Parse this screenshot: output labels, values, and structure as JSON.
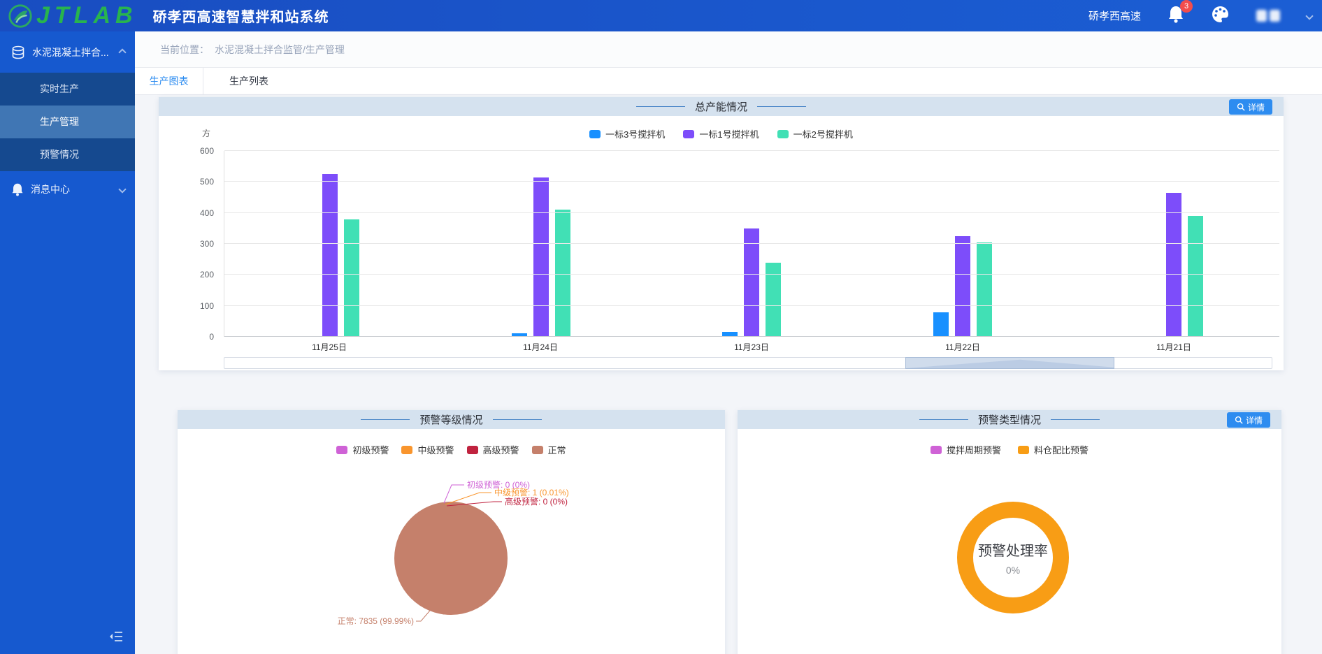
{
  "header": {
    "logo_text": "JTLAB",
    "app_title": "硚孝西高速智慧拌和站系统",
    "org_name": "硚孝西高速",
    "notification_count": "3"
  },
  "sidebar": {
    "group_label": "水泥混凝土拌合...",
    "items": [
      {
        "label": "实时生产",
        "active": false
      },
      {
        "label": "生产管理",
        "active": true
      },
      {
        "label": "预警情况",
        "active": false
      }
    ],
    "message_center_label": "消息中心"
  },
  "breadcrumb": {
    "prefix": "当前位置：",
    "path": "水泥混凝土拌合监管/生产管理"
  },
  "tabs": {
    "chart_tab": "生产图表",
    "list_tab": "生产列表"
  },
  "panels": {
    "capacity": {
      "title": "总产能情况",
      "detail_label": "详情"
    },
    "warning_level": {
      "title": "预警等级情况"
    },
    "warning_type": {
      "title": "预警类型情况",
      "detail_label": "详情"
    }
  },
  "chart_data": [
    {
      "type": "bar",
      "title": "总产能情况",
      "unit": "方",
      "categories": [
        "11月25日",
        "11月24日",
        "11月23日",
        "11月22日",
        "11月21日"
      ],
      "series": [
        {
          "name": "一标3号搅拌机",
          "color": "#1890ff",
          "values": [
            0,
            12,
            15,
            80,
            0
          ]
        },
        {
          "name": "一标1号搅拌机",
          "color": "#7d4dfa",
          "values": [
            525,
            515,
            350,
            325,
            465
          ]
        },
        {
          "name": "一标2号搅拌机",
          "color": "#41e0b5",
          "values": [
            380,
            410,
            240,
            305,
            390
          ]
        }
      ],
      "ylim": [
        0,
        600
      ],
      "yticks": [
        0,
        100,
        200,
        300,
        400,
        500,
        600
      ],
      "legend_position": "top",
      "grid": true,
      "datazoom_window": [
        65,
        85
      ]
    },
    {
      "type": "pie",
      "title": "预警等级情况",
      "legend_position": "top",
      "slices": [
        {
          "name": "初级预警",
          "value": 0,
          "percent": "0%",
          "color": "#cf62d6",
          "callout": "初级预警: 0 (0%)"
        },
        {
          "name": "中级预警",
          "value": 1,
          "percent": "0.01%",
          "color": "#f9952d",
          "callout": "中级预警: 1 (0.01%)"
        },
        {
          "name": "高级预警",
          "value": 0,
          "percent": "0%",
          "color": "#c0233f",
          "callout": "高级预警: 0 (0%)"
        },
        {
          "name": "正常",
          "value": 7835,
          "percent": "99.99%",
          "color": "#c5806b",
          "callout": "正常: 7835 (99.99%)"
        }
      ]
    },
    {
      "type": "pie",
      "variant": "donut",
      "title": "预警类型情况",
      "legend_position": "top",
      "legend_items": [
        {
          "name": "搅拌周期预警",
          "color": "#cf62d6"
        },
        {
          "name": "料仓配比预警",
          "color": "#f89d15"
        }
      ],
      "ring_color": "#f89d15",
      "center_label": "预警处理率",
      "center_value": "0%"
    }
  ]
}
